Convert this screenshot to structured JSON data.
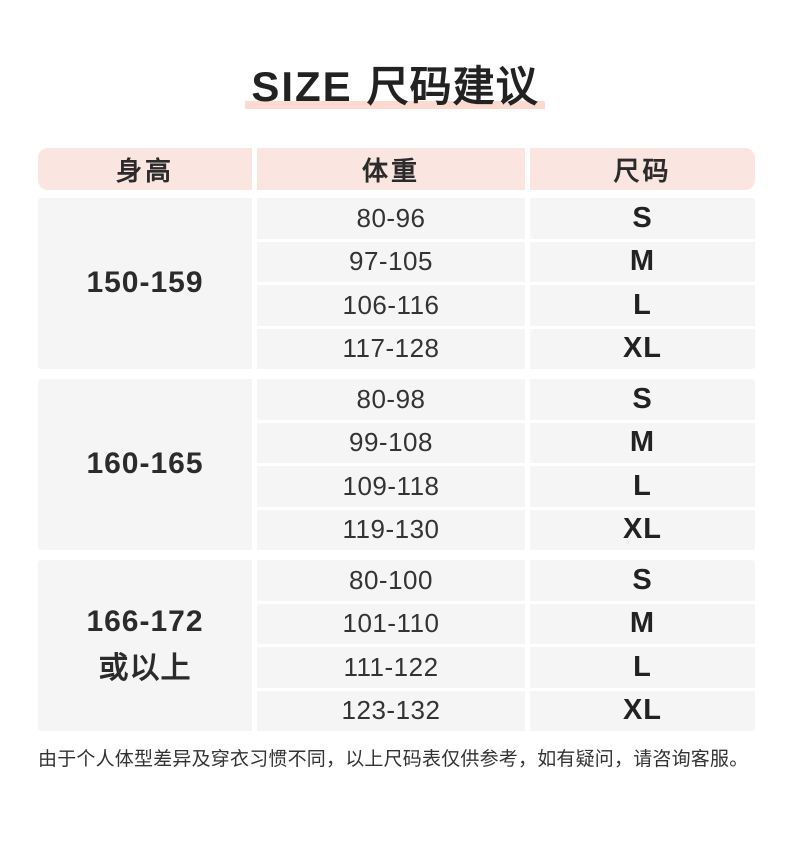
{
  "title": {
    "en": "SIZE",
    "zh": "尺码建议"
  },
  "table": {
    "headers": [
      "身高",
      "体重",
      "尺码"
    ],
    "groups": [
      {
        "height": "150-159",
        "rows": [
          {
            "weight": "80-96",
            "size": "S"
          },
          {
            "weight": "97-105",
            "size": "M"
          },
          {
            "weight": "106-116",
            "size": "L"
          },
          {
            "weight": "117-128",
            "size": "XL"
          }
        ]
      },
      {
        "height": "160-165",
        "rows": [
          {
            "weight": "80-98",
            "size": "S"
          },
          {
            "weight": "99-108",
            "size": "M"
          },
          {
            "weight": "109-118",
            "size": "L"
          },
          {
            "weight": "119-130",
            "size": "XL"
          }
        ]
      },
      {
        "height": "166-172",
        "height_line2": "或以上",
        "rows": [
          {
            "weight": "80-100",
            "size": "S"
          },
          {
            "weight": "101-110",
            "size": "M"
          },
          {
            "weight": "111-122",
            "size": "L"
          },
          {
            "weight": "123-132",
            "size": "XL"
          }
        ]
      }
    ]
  },
  "footer": {
    "note": "由于个人体型差异及穿衣习惯不同，以上尺码表仅供参考，如有疑问，请咨询客服。"
  },
  "colors": {
    "header_bg": "#fbe5e0",
    "row_bg": "#f5f5f5",
    "title_underline": "#fcd9d1",
    "text_dark": "#2b2b2b"
  },
  "chart_data": {
    "type": "table",
    "title": "SIZE 尺码建议",
    "columns": [
      "身高",
      "体重",
      "尺码"
    ],
    "rows": [
      [
        "150-159",
        "80-96",
        "S"
      ],
      [
        "150-159",
        "97-105",
        "M"
      ],
      [
        "150-159",
        "106-116",
        "L"
      ],
      [
        "150-159",
        "117-128",
        "XL"
      ],
      [
        "160-165",
        "80-98",
        "S"
      ],
      [
        "160-165",
        "99-108",
        "M"
      ],
      [
        "160-165",
        "109-118",
        "L"
      ],
      [
        "160-165",
        "119-130",
        "XL"
      ],
      [
        "166-172或以上",
        "80-100",
        "S"
      ],
      [
        "166-172或以上",
        "101-110",
        "M"
      ],
      [
        "166-172或以上",
        "111-122",
        "L"
      ],
      [
        "166-172或以上",
        "123-132",
        "XL"
      ]
    ],
    "note": "由于个人体型差异及穿衣习惯不同，以上尺码表仅供参考，如有疑问，请咨询客服。"
  }
}
